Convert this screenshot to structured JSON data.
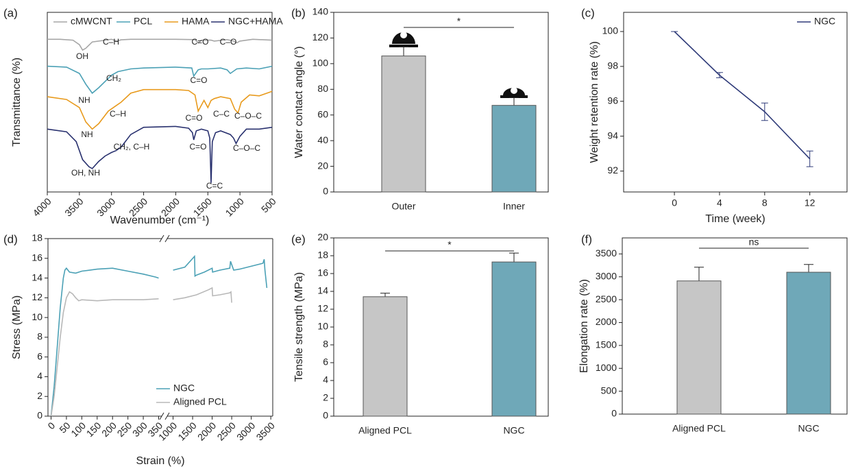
{
  "chart_data": [
    {
      "type": "line",
      "panel_label": "(a)",
      "x_label": "Wavenumber (cm⁻¹)",
      "y_label": "Transmittance (%)",
      "xlim": [
        4000,
        500
      ],
      "xticks": [
        4000,
        3500,
        3000,
        2500,
        2000,
        1500,
        1000,
        500
      ],
      "ylim": [
        0,
        100
      ],
      "series": [
        {
          "name": "cMWCNT",
          "color": "#a6a6a6",
          "x": [
            4000,
            3800,
            3600,
            3500,
            3450,
            3400,
            3300,
            3000,
            2920,
            2850,
            2700,
            2000,
            1700,
            1650,
            1600,
            1450,
            1400,
            1200,
            1100,
            1050,
            1000,
            800,
            500
          ],
          "values": [
            85,
            85,
            84.5,
            82,
            79,
            80,
            83.5,
            85,
            84,
            84.7,
            85,
            85,
            84.8,
            83,
            84.5,
            84.5,
            84,
            84.8,
            84,
            83,
            84,
            85,
            84.5
          ]
        },
        {
          "name": "PCL",
          "color": "#4aa0b5",
          "x": [
            4000,
            3700,
            3500,
            3400,
            3300,
            3200,
            3000,
            2900,
            2700,
            2500,
            2000,
            1750,
            1720,
            1650,
            1600,
            1500,
            1300,
            1200,
            1150,
            1050,
            900,
            700,
            500
          ],
          "values": [
            70,
            69.5,
            66,
            60,
            55,
            58,
            65,
            67,
            68.5,
            69,
            69.5,
            69,
            64.5,
            68,
            68.5,
            68.5,
            69,
            68,
            66,
            68.5,
            69,
            68.5,
            70
          ]
        },
        {
          "name": "HAMA",
          "color": "#e89a1c",
          "x": [
            4000,
            3700,
            3500,
            3400,
            3300,
            3200,
            3050,
            2930,
            2850,
            2700,
            2500,
            2000,
            1800,
            1700,
            1650,
            1620,
            1560,
            1500,
            1450,
            1400,
            1300,
            1150,
            1080,
            1030,
            980,
            850,
            700,
            500
          ],
          "values": [
            53,
            51.5,
            47,
            39,
            35,
            38,
            45,
            48,
            50,
            55,
            57,
            57,
            56.5,
            54,
            45,
            47,
            51,
            47,
            51,
            52,
            53,
            52,
            46,
            44,
            50,
            54,
            53.5,
            56
          ]
        },
        {
          "name": "NGC+HAMA",
          "color": "#28306e",
          "x": [
            4000,
            3700,
            3550,
            3450,
            3350,
            3300,
            3200,
            3100,
            3000,
            2930,
            2850,
            2700,
            2500,
            2000,
            1800,
            1740,
            1720,
            1680,
            1600,
            1500,
            1470,
            1450,
            1430,
            1380,
            1300,
            1150,
            1100,
            1060,
            1000,
            900,
            700,
            500
          ],
          "values": [
            35,
            33.5,
            28,
            18,
            14,
            13,
            17,
            20,
            22,
            23,
            25,
            32,
            36,
            36.5,
            35.5,
            33,
            29,
            34,
            35,
            34,
            30,
            5,
            28,
            33,
            34,
            32,
            30,
            27,
            31,
            35,
            35,
            36
          ]
        }
      ],
      "annotations": [
        {
          "text": "OH",
          "color": "#a6a6a6"
        },
        {
          "text": "C–H",
          "color": "#a6a6a6"
        },
        {
          "text": "C=O",
          "color": "#a6a6a6"
        },
        {
          "text": "C–O",
          "color": "#a6a6a6"
        },
        {
          "text": "CH₂",
          "color": "#4aa0b5"
        },
        {
          "text": "NH",
          "color": "#4aa0b5"
        },
        {
          "text": "C=O",
          "color": "#4aa0b5"
        },
        {
          "text": "C–H",
          "color": "#e89a1c"
        },
        {
          "text": "NH",
          "color": "#e89a1c"
        },
        {
          "text": "C=O",
          "color": "#e89a1c"
        },
        {
          "text": "C–C",
          "color": "#e89a1c"
        },
        {
          "text": "C–O–C",
          "color": "#e89a1c"
        },
        {
          "text": "CH₂, C–H",
          "color": "#28306e"
        },
        {
          "text": "OH, NH",
          "color": "#28306e"
        },
        {
          "text": "C=O",
          "color": "#28306e"
        },
        {
          "text": "C=C",
          "color": "#28306e"
        },
        {
          "text": "C–O–C",
          "color": "#28306e"
        }
      ]
    },
    {
      "type": "bar",
      "panel_label": "(b)",
      "y_label": "Water contact angle (°)",
      "categories": [
        "Outer",
        "Inner"
      ],
      "values": [
        106,
        67.5
      ],
      "errors": [
        7,
        6
      ],
      "colors": [
        "#c6c6c6",
        "#6fa8b8"
      ],
      "significance": "*",
      "ylim": [
        0,
        140
      ],
      "yticks": [
        0,
        20,
        40,
        60,
        80,
        100,
        120,
        140
      ]
    },
    {
      "type": "line",
      "panel_label": "(c)",
      "x_label": "Time (week)",
      "y_label": "Weight retention rate (%)",
      "xlim": [
        -4.5,
        15.3
      ],
      "xticks": [
        0,
        4,
        8,
        12
      ],
      "ylim": [
        90.8,
        101.1
      ],
      "yticks": [
        92,
        94,
        96,
        98,
        100
      ],
      "series": [
        {
          "name": "NGC",
          "color": "#2e3a78",
          "x": [
            0,
            4,
            8,
            12
          ],
          "values": [
            100,
            97.5,
            95.4,
            92.7
          ],
          "errors": [
            0,
            0.15,
            0.5,
            0.45
          ]
        }
      ]
    },
    {
      "type": "line",
      "panel_label": "(d)",
      "x_label": "Strain (%)",
      "y_label": "Stress (MPa)",
      "xlim_segments": [
        [
          -10,
          360
        ],
        [
          850,
          3550
        ]
      ],
      "xticks": [
        0,
        50,
        100,
        150,
        200,
        250,
        300,
        350,
        1000,
        1500,
        2000,
        2500,
        3000,
        3500
      ],
      "ylim": [
        0,
        18
      ],
      "yticks": [
        0,
        2,
        4,
        6,
        8,
        10,
        12,
        14,
        16,
        18
      ],
      "series": [
        {
          "name": "NGC",
          "color": "#4aa0b5",
          "x": [
            0,
            10,
            20,
            30,
            40,
            45,
            50,
            60,
            80,
            100,
            150,
            200,
            250,
            300,
            340,
            350,
            null,
            1000,
            1300,
            1550,
            1560,
            1600,
            1800,
            2000,
            2010,
            2200,
            2450,
            2470,
            2550,
            2700,
            3300,
            3330,
            3350,
            3400
          ],
          "values": [
            0,
            3,
            7,
            11,
            14,
            14.8,
            15,
            14.6,
            14.5,
            14.7,
            14.9,
            15,
            14.7,
            14.4,
            14.1,
            14,
            null,
            14.8,
            15.1,
            16.2,
            14.2,
            14.3,
            14.6,
            15,
            14.6,
            14.8,
            15,
            15.7,
            14.8,
            14.9,
            15.5,
            15.9,
            14.8,
            13
          ]
        },
        {
          "name": "Aligned PCL",
          "color": "#b8b8b8",
          "x": [
            0,
            10,
            20,
            30,
            40,
            50,
            60,
            70,
            80,
            90,
            100,
            150,
            200,
            250,
            300,
            350,
            null,
            1000,
            1300,
            1600,
            1900,
            2000,
            2010,
            2200,
            2450,
            2480,
            2500
          ],
          "values": [
            0,
            2,
            5,
            8,
            10.5,
            12,
            12.6,
            12.4,
            12,
            11.7,
            11.8,
            11.7,
            11.8,
            11.8,
            11.8,
            11.9,
            null,
            11.8,
            12,
            12.3,
            12.8,
            13,
            12.2,
            12.3,
            12.5,
            12.6,
            11.5
          ]
        }
      ]
    },
    {
      "type": "bar",
      "panel_label": "(e)",
      "y_label": "Tensile strength (MPa)",
      "categories": [
        "Aligned PCL",
        "NGC"
      ],
      "values": [
        13.4,
        17.3
      ],
      "errors": [
        0.4,
        1.0
      ],
      "colors": [
        "#c6c6c6",
        "#6fa8b8"
      ],
      "significance": "*",
      "ylim": [
        0,
        20
      ],
      "yticks": [
        0,
        2,
        4,
        6,
        8,
        10,
        12,
        14,
        16,
        18,
        20
      ]
    },
    {
      "type": "bar",
      "panel_label": "(f)",
      "y_label": "Elongation rate (%)",
      "categories": [
        "Aligned PCL",
        "NGC"
      ],
      "values": [
        2910,
        3100
      ],
      "errors": [
        300,
        170
      ],
      "colors": [
        "#c6c6c6",
        "#6fa8b8"
      ],
      "significance": "ns",
      "ylim": [
        0,
        3850
      ],
      "yticks": [
        0,
        500,
        1000,
        1500,
        2000,
        2500,
        3000,
        3500
      ]
    }
  ]
}
